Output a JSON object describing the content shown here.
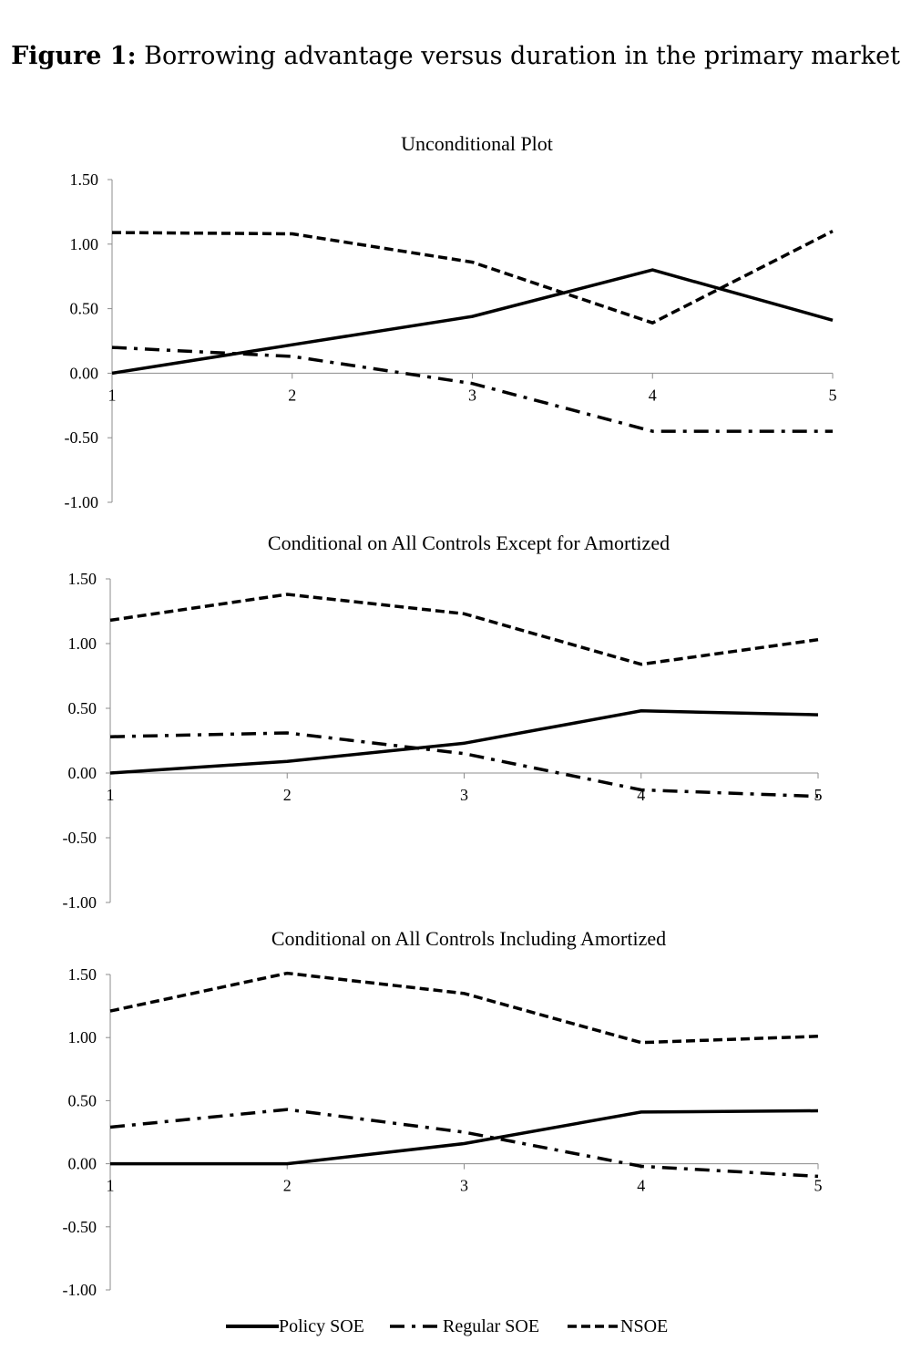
{
  "figure": {
    "number_label": "Figure 1:",
    "caption": "Borrowing advantage versus duration in the primary market"
  },
  "colors": {
    "line": "#000000",
    "axis": "#8c8c8c",
    "background": "#ffffff"
  },
  "legend": {
    "items": [
      {
        "name": "Policy SOE",
        "style": "solid"
      },
      {
        "name": "Regular SOE",
        "style": "dash-dot"
      },
      {
        "name": "NSOE",
        "style": "dashed"
      }
    ],
    "placement": "bottom"
  },
  "chart_data": [
    {
      "type": "line",
      "title": "Unconditional Plot",
      "x": [
        1,
        2,
        3,
        4,
        5
      ],
      "x_tick_labels": [
        "1",
        "2",
        "3",
        "4",
        "5"
      ],
      "y_tick_labels": [
        "1.50",
        "1.00",
        "0.50",
        "0.00",
        "-0.50",
        "-1.00"
      ],
      "ylim": [
        -1.0,
        1.5
      ],
      "grid": false,
      "series": [
        {
          "name": "Policy SOE",
          "style": "solid",
          "values": [
            0.0,
            0.22,
            0.44,
            0.8,
            0.41
          ]
        },
        {
          "name": "Regular SOE",
          "style": "dash-dot",
          "values": [
            0.2,
            0.13,
            -0.08,
            -0.45,
            -0.45
          ]
        },
        {
          "name": "NSOE",
          "style": "dashed",
          "values": [
            1.09,
            1.08,
            0.86,
            0.39,
            1.1
          ]
        }
      ]
    },
    {
      "type": "line",
      "title": "Conditional on All Controls Except for Amortized",
      "x": [
        1,
        2,
        3,
        4,
        5
      ],
      "x_tick_labels": [
        "1",
        "2",
        "3",
        "4",
        "5"
      ],
      "y_tick_labels": [
        "1.50",
        "1.00",
        "0.50",
        "0.00",
        "-0.50",
        "-1.00"
      ],
      "ylim": [
        -1.0,
        1.5
      ],
      "grid": false,
      "series": [
        {
          "name": "Policy SOE",
          "style": "solid",
          "values": [
            0.0,
            0.09,
            0.23,
            0.48,
            0.45
          ]
        },
        {
          "name": "Regular SOE",
          "style": "dash-dot",
          "values": [
            0.28,
            0.31,
            0.15,
            -0.13,
            -0.18
          ]
        },
        {
          "name": "NSOE",
          "style": "dashed",
          "values": [
            1.18,
            1.38,
            1.23,
            0.84,
            1.03
          ]
        }
      ]
    },
    {
      "type": "line",
      "title": "Conditional on All Controls Including Amortized",
      "x": [
        1,
        2,
        3,
        4,
        5
      ],
      "x_tick_labels": [
        "1",
        "2",
        "3",
        "4",
        "5"
      ],
      "y_tick_labels": [
        "1.50",
        "1.00",
        "0.50",
        "0.00",
        "-0.50",
        "-1.00"
      ],
      "ylim": [
        -1.0,
        1.5
      ],
      "grid": false,
      "series": [
        {
          "name": "Policy SOE",
          "style": "solid",
          "values": [
            0.0,
            0.0,
            0.16,
            0.41,
            0.42
          ]
        },
        {
          "name": "Regular SOE",
          "style": "dash-dot",
          "values": [
            0.29,
            0.43,
            0.25,
            -0.02,
            -0.1
          ]
        },
        {
          "name": "NSOE",
          "style": "dashed",
          "values": [
            1.21,
            1.51,
            1.35,
            0.96,
            1.01
          ]
        }
      ]
    }
  ]
}
